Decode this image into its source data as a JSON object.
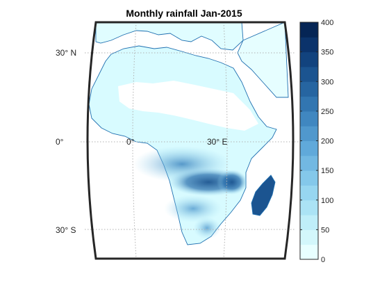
{
  "title": "Monthly rainfall Jan-2015",
  "map": {
    "lat_labels": [
      "30° N",
      "0°",
      "30° S"
    ],
    "lon_labels": [
      "0°",
      "30° E"
    ],
    "grid": true,
    "frame_color": "#262626",
    "ocean_color": "#ffffff",
    "coastline_color": "#1f6fb0"
  },
  "colorbar": {
    "min": 0,
    "max": 400,
    "step": 25,
    "ticks": [
      "0",
      "50",
      "100",
      "150",
      "200",
      "250",
      "300",
      "350",
      "400"
    ],
    "colors": [
      "#e8ffff",
      "#d3f7fb",
      "#bfeef9",
      "#abe3f5",
      "#97d6f0",
      "#84c8ea",
      "#72b8e2",
      "#60a9da",
      "#5098cd",
      "#4087c0",
      "#3276b1",
      "#2665a1",
      "#1b5490",
      "#12437e",
      "#0b336b",
      "#052555"
    ]
  }
}
